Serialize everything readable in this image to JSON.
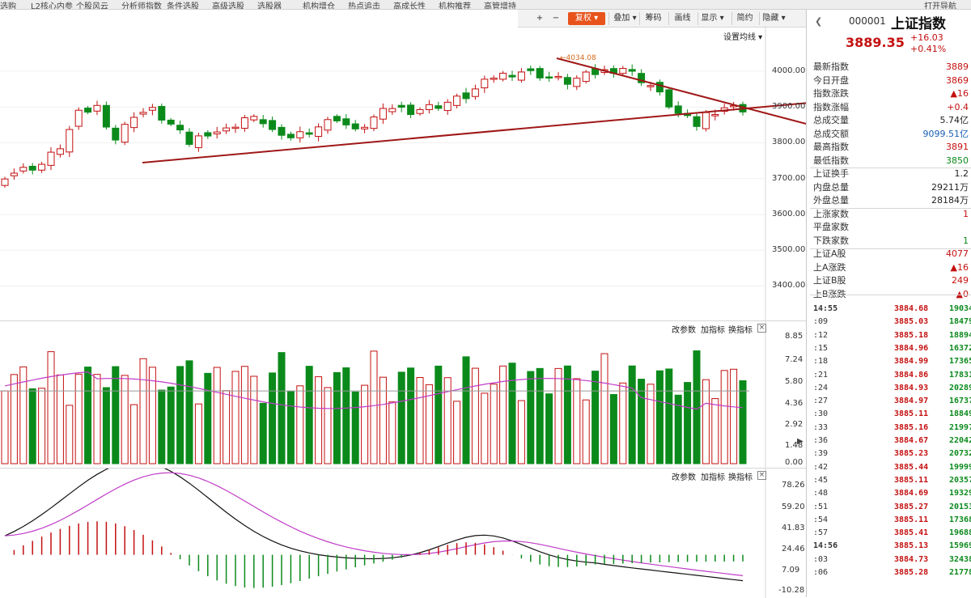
{
  "menu": [
    "选购",
    "L2核心内参",
    "个股风云",
    "分析师指数",
    "条件选股",
    "高级选股",
    "选股器",
    "机构增仓",
    "热点追击",
    "高成长性",
    "机构推荐",
    "高管增持"
  ],
  "menu_right": "打开导航",
  "toolbar": {
    "items": [
      "+",
      "−",
      "复权",
      "叠加",
      "筹码",
      "画线",
      "显示",
      "简约",
      "隐藏"
    ],
    "active": "复权",
    "set_ma": "设置均线"
  },
  "stock": {
    "code": "000001",
    "name": "上证指数",
    "price": "3889.35",
    "change": "+16.03",
    "change_pct": "+0.41%"
  },
  "quote_rows": [
    {
      "k": "最新指数",
      "v": "3889",
      "c": "#c41010"
    },
    {
      "k": "今日开盘",
      "v": "3869",
      "c": "#c41010"
    },
    {
      "k": "指数涨跌",
      "v": "▲16",
      "c": "#c41010"
    },
    {
      "k": "指数涨幅",
      "v": "+0.4",
      "c": "#c41010"
    },
    {
      "k": "总成交量",
      "v": "5.74亿",
      "c": "#222"
    },
    {
      "k": "总成交额",
      "v": "9099.51亿",
      "c": "#1a5fb4"
    },
    {
      "k": "最高指数",
      "v": "3891",
      "c": "#c41010"
    },
    {
      "k": "最低指数",
      "v": "3850",
      "c": "#0b8a1b"
    },
    {
      "k": "上证换手",
      "v": "1.2",
      "c": "#222"
    },
    {
      "k": "内盘总量",
      "v": "29211万",
      "c": "#222"
    },
    {
      "k": "外盘总量",
      "v": "28184万",
      "c": "#222"
    },
    {
      "k": "上涨家数",
      "v": "1",
      "c": "#c41010"
    },
    {
      "k": "平盘家数",
      "v": "",
      "c": "#222"
    },
    {
      "k": "下跌家数",
      "v": "1",
      "c": "#0b8a1b"
    },
    {
      "k": "上证A股",
      "v": "4077",
      "c": "#c41010"
    },
    {
      "k": "上A涨跌",
      "v": "▲16",
      "c": "#c41010"
    },
    {
      "k": "上证B股",
      "v": "249",
      "c": "#c41010"
    },
    {
      "k": "上B涨跌",
      "v": "▲0",
      "c": "#c41010"
    }
  ],
  "ticks": [
    {
      "t": "14:55",
      "p": "3884.68",
      "v": "19034"
    },
    {
      "t": ":09",
      "p": "3885.03",
      "v": "18479"
    },
    {
      "t": ":12",
      "p": "3885.18",
      "v": "18894"
    },
    {
      "t": ":15",
      "p": "3884.96",
      "v": "16372"
    },
    {
      "t": ":18",
      "p": "3884.99",
      "v": "17365"
    },
    {
      "t": ":21",
      "p": "3884.86",
      "v": "17831"
    },
    {
      "t": ":24",
      "p": "3884.93",
      "v": "20289"
    },
    {
      "t": ":27",
      "p": "3884.97",
      "v": "16737"
    },
    {
      "t": ":30",
      "p": "3885.11",
      "v": "18849"
    },
    {
      "t": ":33",
      "p": "3885.16",
      "v": "21997"
    },
    {
      "t": ":36",
      "p": "3884.67",
      "v": "22042"
    },
    {
      "t": ":39",
      "p": "3885.23",
      "v": "20732"
    },
    {
      "t": ":42",
      "p": "3885.44",
      "v": "19999"
    },
    {
      "t": ":45",
      "p": "3885.11",
      "v": "20357"
    },
    {
      "t": ":48",
      "p": "3884.69",
      "v": "19329"
    },
    {
      "t": ":51",
      "p": "3885.27",
      "v": "20153"
    },
    {
      "t": ":54",
      "p": "3885.11",
      "v": "17368"
    },
    {
      "t": ":57",
      "p": "3885.41",
      "v": "19688"
    },
    {
      "t": "14:56",
      "p": "3885.13",
      "v": "15969"
    },
    {
      "t": ":03",
      "p": "3884.73",
      "v": "32438"
    },
    {
      "t": ":06",
      "p": "3885.28",
      "v": "21778"
    }
  ],
  "price_axis": [
    "4000.00",
    "3900.00",
    "3800.00",
    "3700.00",
    "3600.00",
    "3500.00",
    "3400.00"
  ],
  "vol_axis": [
    "8.85",
    "7.24",
    "5.80",
    "4.36",
    "2.92",
    "1.48",
    "0.00"
  ],
  "macd_axis": [
    "78.26",
    "59.20",
    "41.83",
    "24.46",
    "7.09",
    "-10.28"
  ],
  "high_label": "4034.08",
  "panel_links": {
    "params": "改参数",
    "add": "加指标",
    "switch": "换指标",
    "close": "×"
  },
  "colors": {
    "up": "#c41010",
    "down": "#0b8a1b",
    "trend": "#a01818",
    "ma": "#c03cc8"
  }
}
